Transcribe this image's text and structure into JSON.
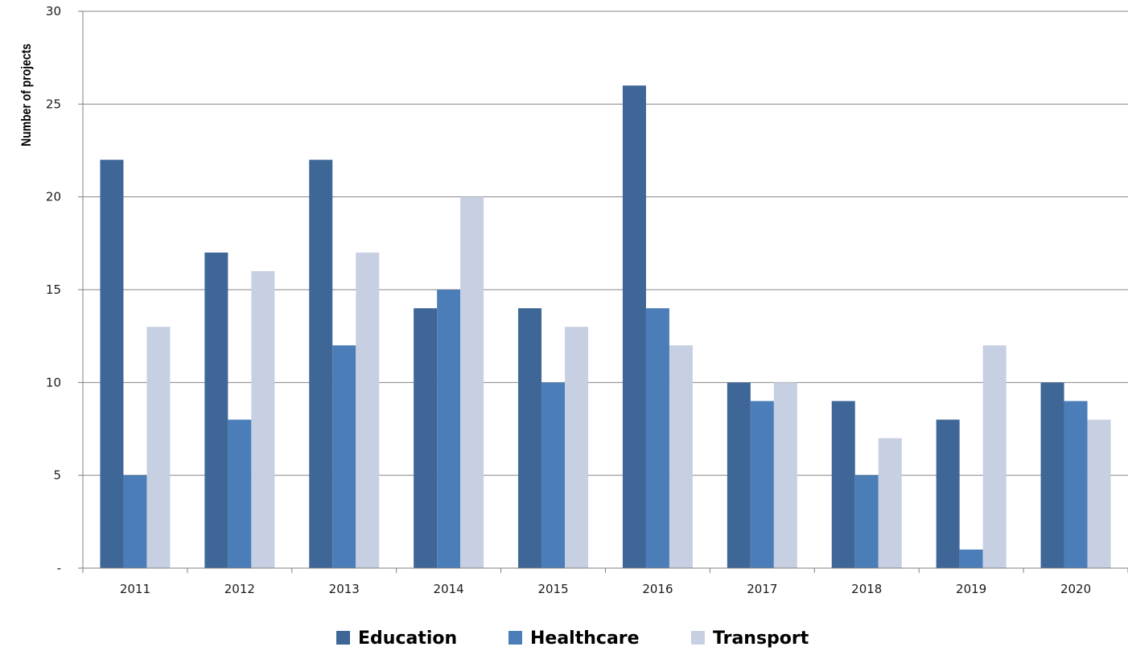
{
  "chart_data": {
    "type": "bar",
    "title": "",
    "xlabel": "",
    "ylabel": "Number of projects",
    "ylim": [
      0,
      30
    ],
    "y_ticks": [
      {
        "value": 0,
        "label": "-"
      },
      {
        "value": 5,
        "label": "5"
      },
      {
        "value": 10,
        "label": "10"
      },
      {
        "value": 15,
        "label": "15"
      },
      {
        "value": 20,
        "label": "20"
      },
      {
        "value": 25,
        "label": "25"
      },
      {
        "value": 30,
        "label": "30"
      }
    ],
    "grid": true,
    "legend_position": "bottom-center",
    "categories": [
      "2011",
      "2012",
      "2013",
      "2014",
      "2015",
      "2016",
      "2017",
      "2018",
      "2019",
      "2020"
    ],
    "series": [
      {
        "name": "Education",
        "color": "#3E6697",
        "values": [
          22,
          17,
          22,
          14,
          14,
          26,
          10,
          9,
          8,
          10
        ]
      },
      {
        "name": "Healthcare",
        "color": "#4B7DB8",
        "values": [
          5,
          8,
          12,
          15,
          10,
          14,
          9,
          5,
          1,
          9
        ]
      },
      {
        "name": "Transport",
        "color": "#C7D0E2",
        "values": [
          13,
          16,
          17,
          20,
          13,
          12,
          10,
          7,
          12,
          8
        ]
      }
    ]
  }
}
